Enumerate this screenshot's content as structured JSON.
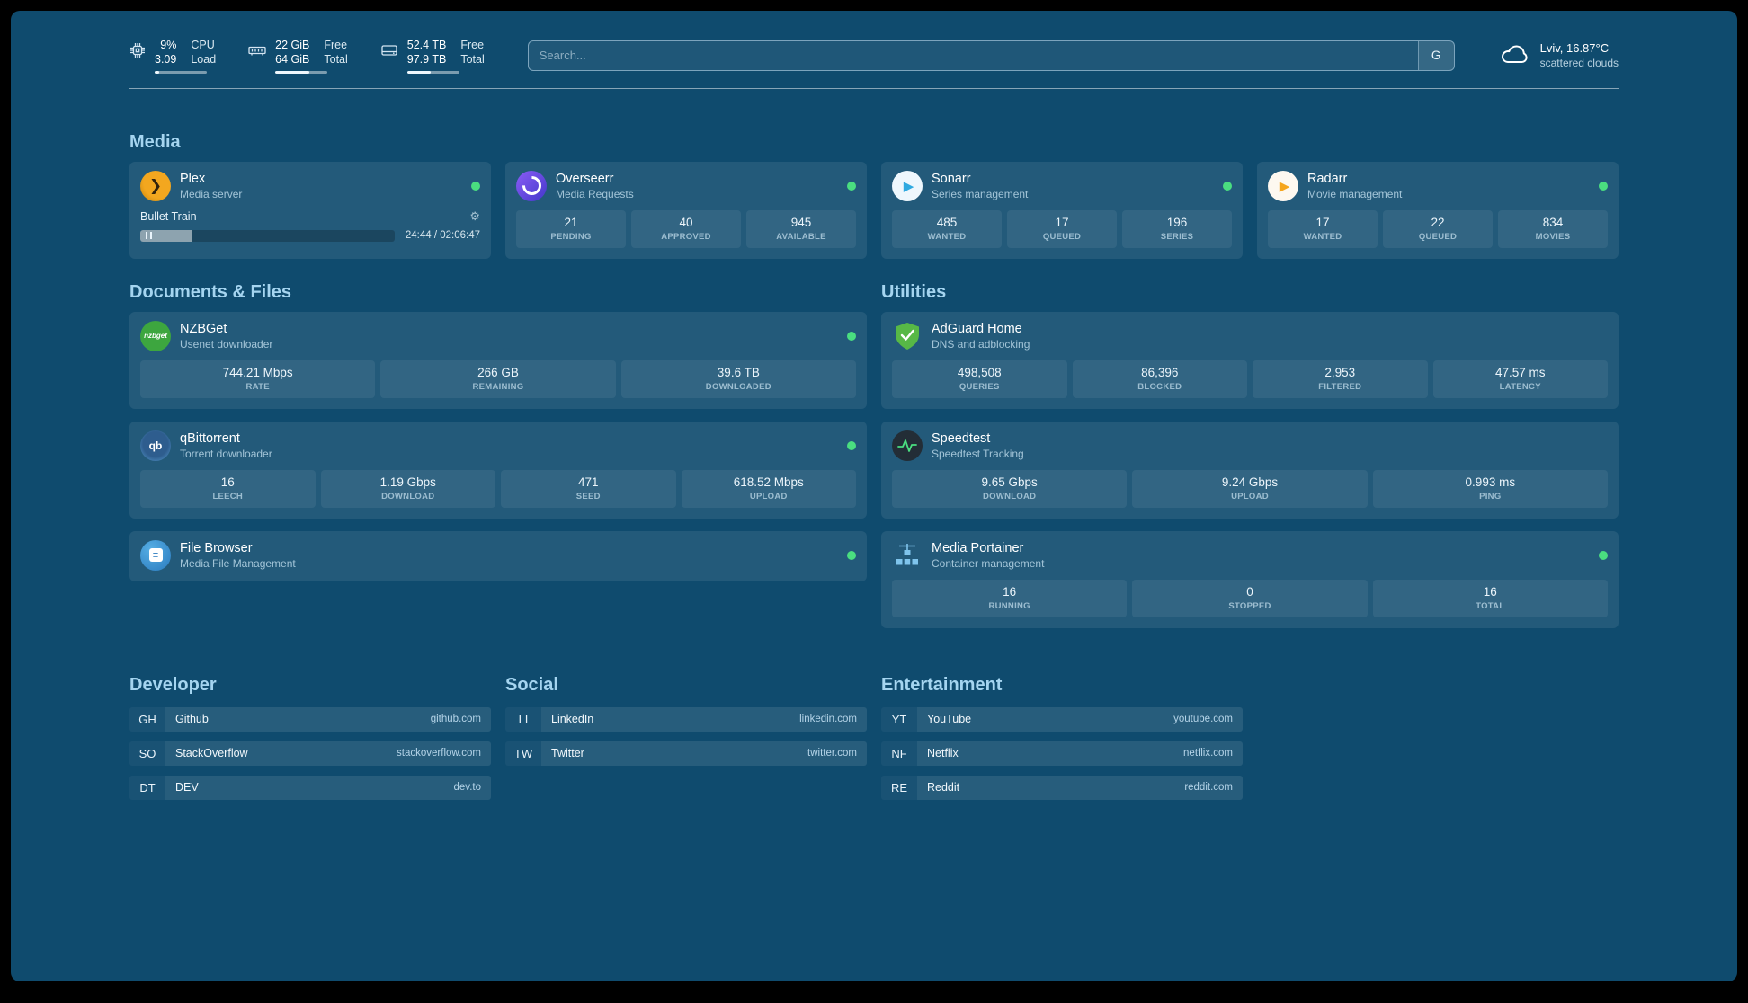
{
  "colors": {
    "background": "#0f4b6e",
    "status_online": "#4ade80",
    "section_heading": "#a5d5f0"
  },
  "icons": {
    "gear": "⚙",
    "plex_chevron": "❯",
    "play": "▶",
    "menu_lines": "≡"
  },
  "topbar": {
    "cpu": {
      "value1": "9%",
      "label1": "CPU",
      "value2": "3.09",
      "label2": "Load",
      "progress": 9
    },
    "memory": {
      "value1": "22 GiB",
      "label1": "Free",
      "value2": "64 GiB",
      "label2": "Total",
      "progress": 66
    },
    "disk": {
      "value1": "52.4 TB",
      "label1": "Free",
      "value2": "97.9 TB",
      "label2": "Total",
      "progress": 46
    },
    "search": {
      "placeholder": "Search...",
      "button": "G"
    },
    "weather": {
      "location": "Lviv, 16.87°C",
      "condition": "scattered clouds"
    }
  },
  "sections": {
    "media": "Media",
    "documents": "Documents & Files",
    "utilities": "Utilities"
  },
  "services": {
    "plex": {
      "name": "Plex",
      "subtitle": "Media server",
      "now_playing": {
        "title": "Bullet Train",
        "time": "24:44 / 02:06:47",
        "progress": 20
      }
    },
    "overseerr": {
      "name": "Overseerr",
      "subtitle": "Media Requests",
      "stats": [
        {
          "value": "21",
          "label": "PENDING"
        },
        {
          "value": "40",
          "label": "APPROVED"
        },
        {
          "value": "945",
          "label": "AVAILABLE"
        }
      ]
    },
    "sonarr": {
      "name": "Sonarr",
      "subtitle": "Series management",
      "stats": [
        {
          "value": "485",
          "label": "WANTED"
        },
        {
          "value": "17",
          "label": "QUEUED"
        },
        {
          "value": "196",
          "label": "SERIES"
        }
      ]
    },
    "radarr": {
      "name": "Radarr",
      "subtitle": "Movie management",
      "stats": [
        {
          "value": "17",
          "label": "WANTED"
        },
        {
          "value": "22",
          "label": "QUEUED"
        },
        {
          "value": "834",
          "label": "MOVIES"
        }
      ]
    },
    "nzbget": {
      "name": "NZBGet",
      "subtitle": "Usenet downloader",
      "icon_text": "nzbget",
      "stats": [
        {
          "value": "744.21 Mbps",
          "label": "RATE"
        },
        {
          "value": "266 GB",
          "label": "REMAINING"
        },
        {
          "value": "39.6 TB",
          "label": "DOWNLOADED"
        }
      ]
    },
    "qbittorrent": {
      "name": "qBittorrent",
      "subtitle": "Torrent downloader",
      "icon_text": "qb",
      "stats": [
        {
          "value": "16",
          "label": "LEECH"
        },
        {
          "value": "1.19 Gbps",
          "label": "DOWNLOAD"
        },
        {
          "value": "471",
          "label": "SEED"
        },
        {
          "value": "618.52 Mbps",
          "label": "UPLOAD"
        }
      ]
    },
    "filebrowser": {
      "name": "File Browser",
      "subtitle": "Media File Management"
    },
    "adguard": {
      "name": "AdGuard Home",
      "subtitle": "DNS and adblocking",
      "stats": [
        {
          "value": "498,508",
          "label": "QUERIES"
        },
        {
          "value": "86,396",
          "label": "BLOCKED"
        },
        {
          "value": "2,953",
          "label": "FILTERED"
        },
        {
          "value": "47.57 ms",
          "label": "LATENCY"
        }
      ]
    },
    "speedtest": {
      "name": "Speedtest",
      "subtitle": "Speedtest Tracking",
      "stats": [
        {
          "value": "9.65 Gbps",
          "label": "DOWNLOAD"
        },
        {
          "value": "9.24 Gbps",
          "label": "UPLOAD"
        },
        {
          "value": "0.993 ms",
          "label": "PING"
        }
      ]
    },
    "portainer": {
      "name": "Media Portainer",
      "subtitle": "Container management",
      "stats": [
        {
          "value": "16",
          "label": "RUNNING"
        },
        {
          "value": "0",
          "label": "STOPPED"
        },
        {
          "value": "16",
          "label": "TOTAL"
        }
      ]
    }
  },
  "bookmarks": {
    "developer": {
      "title": "Developer",
      "items": [
        {
          "abbr": "GH",
          "label": "Github",
          "domain": "github.com"
        },
        {
          "abbr": "SO",
          "label": "StackOverflow",
          "domain": "stackoverflow.com"
        },
        {
          "abbr": "DT",
          "label": "DEV",
          "domain": "dev.to"
        }
      ]
    },
    "social": {
      "title": "Social",
      "items": [
        {
          "abbr": "LI",
          "label": "LinkedIn",
          "domain": "linkedin.com"
        },
        {
          "abbr": "TW",
          "label": "Twitter",
          "domain": "twitter.com"
        }
      ]
    },
    "entertainment": {
      "title": "Entertainment",
      "items": [
        {
          "abbr": "YT",
          "label": "YouTube",
          "domain": "youtube.com"
        },
        {
          "abbr": "NF",
          "label": "Netflix",
          "domain": "netflix.com"
        },
        {
          "abbr": "RE",
          "label": "Reddit",
          "domain": "reddit.com"
        }
      ]
    }
  }
}
